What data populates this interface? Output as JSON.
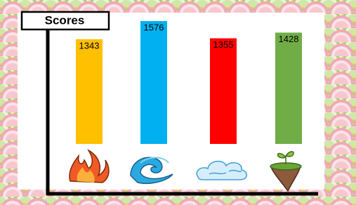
{
  "chart_data": {
    "type": "bar",
    "title": "Scores",
    "values": [
      1343,
      1576,
      1355,
      1428
    ],
    "colors": [
      "#ffc000",
      "#00b0f0",
      "#ff0000",
      "#70ad47"
    ]
  }
}
